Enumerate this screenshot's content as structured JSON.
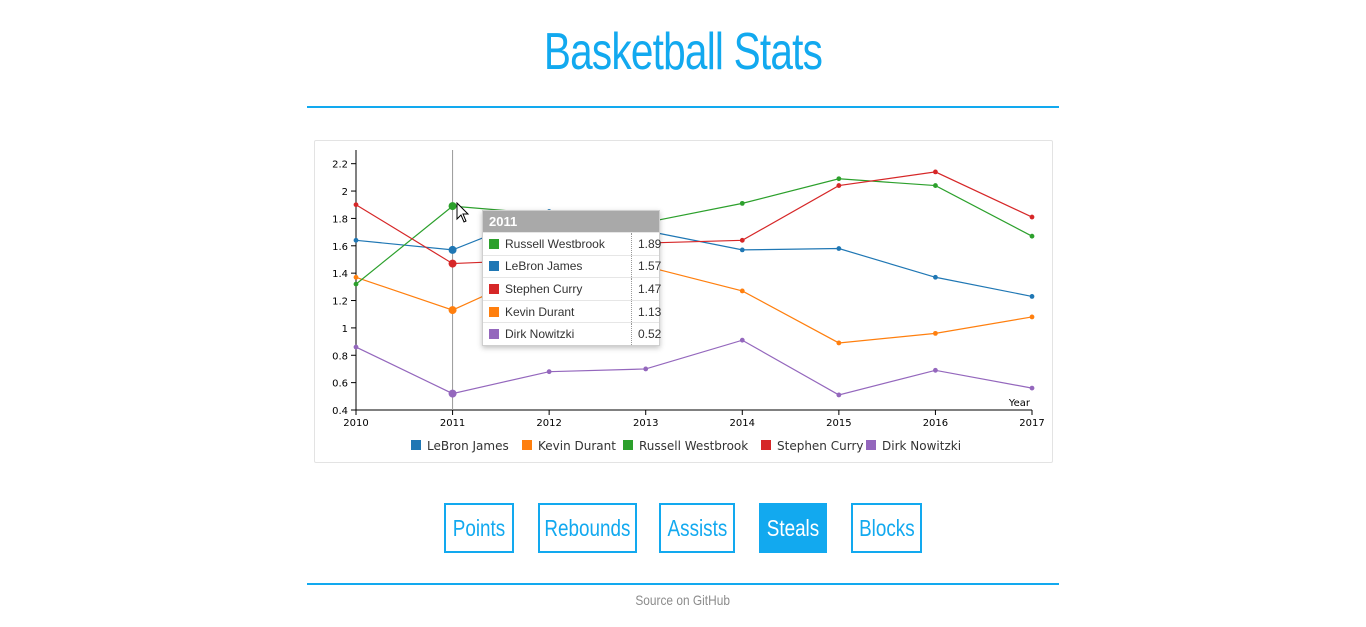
{
  "page": {
    "title": "Basketball Stats",
    "footer_link": "Source on GitHub"
  },
  "colors": {
    "accent": "#12a9ef"
  },
  "buttons": [
    {
      "label": "Points",
      "active": false
    },
    {
      "label": "Rebounds",
      "active": false
    },
    {
      "label": "Assists",
      "active": false
    },
    {
      "label": "Steals",
      "active": true
    },
    {
      "label": "Blocks",
      "active": false
    }
  ],
  "tooltip": {
    "year": "2011",
    "rows": [
      {
        "name": "Russell Westbrook",
        "value": "1.89",
        "color": "#2ca02c"
      },
      {
        "name": "LeBron James",
        "value": "1.57",
        "color": "#1f77b4"
      },
      {
        "name": "Stephen Curry",
        "value": "1.47",
        "color": "#d62728"
      },
      {
        "name": "Kevin Durant",
        "value": "1.13",
        "color": "#ff7f0e"
      },
      {
        "name": "Dirk Nowitzki",
        "value": "0.52",
        "color": "#9467bd"
      }
    ]
  },
  "chart_data": {
    "type": "line",
    "x": [
      2010,
      2011,
      2012,
      2013,
      2014,
      2015,
      2016,
      2017
    ],
    "xlabel": "Year",
    "ylabel": "",
    "xlim": [
      2010,
      2017
    ],
    "ylim": [
      0.4,
      2.3
    ],
    "yticks": [
      0.4,
      0.6,
      0.8,
      1,
      1.2,
      1.4,
      1.6,
      1.8,
      2,
      2.2
    ],
    "legend_position": "bottom",
    "highlight_x": 2011,
    "series": [
      {
        "name": "LeBron James",
        "color": "#1f77b4",
        "values": [
          1.64,
          1.57,
          1.85,
          1.71,
          1.57,
          1.58,
          1.37,
          1.23
        ]
      },
      {
        "name": "Kevin Durant",
        "color": "#ff7f0e",
        "values": [
          1.37,
          1.13,
          1.45,
          1.45,
          1.27,
          0.89,
          0.96,
          1.08
        ]
      },
      {
        "name": "Russell Westbrook",
        "color": "#2ca02c",
        "values": [
          1.32,
          1.89,
          1.83,
          1.77,
          1.91,
          2.09,
          2.04,
          1.67
        ]
      },
      {
        "name": "Stephen Curry",
        "color": "#d62728",
        "values": [
          1.9,
          1.47,
          1.5,
          1.62,
          1.64,
          2.04,
          2.14,
          1.81
        ]
      },
      {
        "name": "Dirk Nowitzki",
        "color": "#9467bd",
        "values": [
          0.86,
          0.52,
          0.68,
          0.7,
          0.91,
          0.51,
          0.69,
          0.56
        ]
      }
    ]
  }
}
